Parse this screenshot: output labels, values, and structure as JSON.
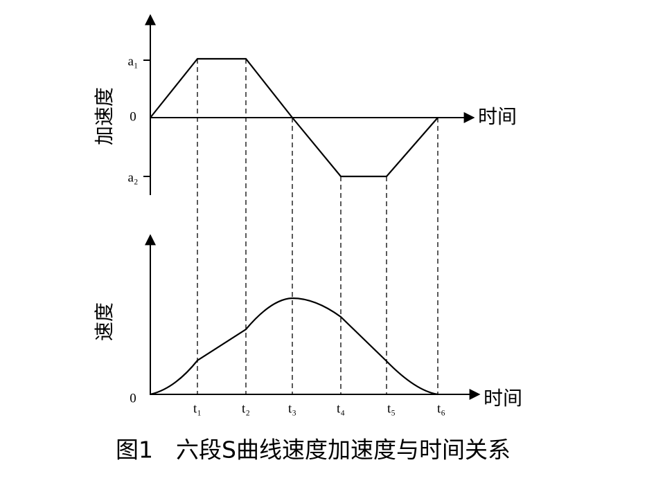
{
  "top_chart": {
    "y_label": "加速度",
    "x_label": "时间",
    "zero": "0",
    "a1": "a₁",
    "a2": "a₂"
  },
  "bottom_chart": {
    "y_label": "速度",
    "x_label": "时间",
    "zero": "0",
    "x_ticks": [
      "t₁",
      "t₂",
      "t₃",
      "t₄",
      "t₅",
      "t₆"
    ]
  },
  "caption": "图1　六段S曲线速度加速度与时间关系"
}
